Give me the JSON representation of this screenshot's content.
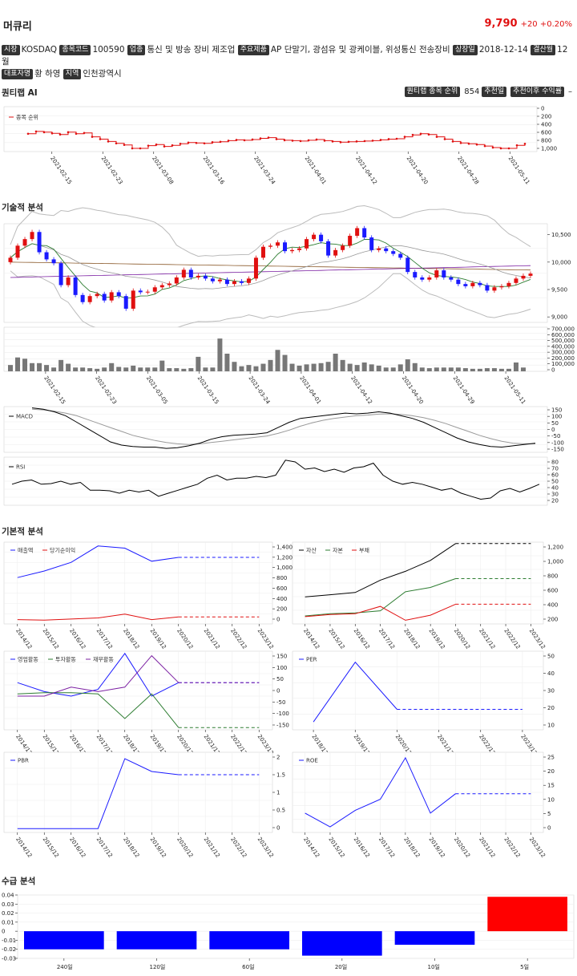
{
  "header": {
    "name": "머큐리",
    "price": "9,790",
    "change": "+20 +0.20%"
  },
  "info": {
    "market_label": "시장",
    "market": "KOSDAQ",
    "code_label": "종목코드",
    "code": "100590",
    "industry_label": "업종",
    "industry": "통신 및 방송 장비 제조업",
    "product_label": "주요제품",
    "product": "AP 단말기, 광섬유 및 광케이블, 위성통신 전송장비",
    "listing_label": "상장일",
    "listing": "2018-12-14",
    "fiscal_label": "결산월",
    "fiscal": "12월",
    "ceo_label": "대표자명",
    "ceo": "황 하영",
    "region_label": "지역",
    "region": "인천광역시"
  },
  "sections": {
    "ai": "퀀티랩 AI",
    "tech": "기술적 분석",
    "fund": "기본적 분석",
    "supply": "수급 분석"
  },
  "ai": {
    "rank_label": "퀀티랩 종목 순위",
    "rank": "854",
    "rec_label": "추천일",
    "ret_label": "추천이후 수익률",
    "ret": "–"
  },
  "charts": {
    "rank": {
      "legend": "종목 순위",
      "yticks": [
        "0",
        "200",
        "400",
        "600",
        "800",
        "1,000"
      ],
      "xticks": [
        "2021-02-15",
        "2021-02-23",
        "2021-03-08",
        "2021-03-16",
        "2021-03-24",
        "2021-04-01",
        "2021-04-12",
        "2021-04-20",
        "2021-04-28",
        "2021-05-11"
      ],
      "values": [
        620,
        560,
        580,
        610,
        640,
        580,
        620,
        600,
        700,
        760,
        820,
        870,
        910,
        1000,
        1000,
        930,
        900,
        950,
        920,
        880,
        850,
        860,
        870,
        840,
        830,
        800,
        780,
        790,
        770,
        740,
        720,
        760,
        790,
        800,
        810,
        790,
        770,
        800,
        820,
        840,
        830,
        820,
        810,
        800,
        780,
        760,
        750,
        700,
        650,
        620,
        640,
        700,
        760,
        820,
        860,
        880,
        900,
        940,
        980,
        1000,
        1000,
        920,
        880
      ]
    },
    "candle": {
      "yticks": [
        "10,500",
        "10,000",
        "9,500",
        "9,000"
      ],
      "xticks": [
        "2021-02-15",
        "2021-02-23",
        "2021-03-05",
        "2021-03-15",
        "2021-03-24",
        "2021-04-01",
        "2021-04-12",
        "2021-04-20",
        "2021-04-29",
        "2021-05-11"
      ]
    },
    "volume": {
      "yticks": [
        "700,000",
        "600,000",
        "500,000",
        "400,000",
        "300,000",
        "200,000",
        "100,000",
        "0"
      ]
    },
    "macd": {
      "legend": "MACD",
      "yticks": [
        "150",
        "100",
        "50",
        "0",
        "-50",
        "-100",
        "-150"
      ]
    },
    "rsi": {
      "legend": "RSI",
      "yticks": [
        "80",
        "70",
        "60",
        "50",
        "40",
        "30",
        "20"
      ]
    },
    "sales": {
      "legend": [
        "매출액",
        "당기순이익"
      ],
      "yticks": [
        "1,400",
        "1,200",
        "1,000",
        "800",
        "600",
        "400",
        "200",
        "0"
      ],
      "xticks": [
        "2014/12",
        "2015/12",
        "2016/12",
        "2017/12",
        "2018/12",
        "2019/12",
        "2020/12",
        "2021/12",
        "2022/12",
        "2023/12"
      ]
    },
    "assets": {
      "legend": [
        "자산",
        "자본",
        "부채"
      ],
      "yticks": [
        "1,200",
        "1,000",
        "800",
        "600",
        "400",
        "200"
      ],
      "xticks": [
        "2014/12",
        "2015/12",
        "2016/12",
        "2017/12",
        "2018/12",
        "2019/12",
        "2020/12",
        "2021/12",
        "2022/12",
        "2023/12"
      ]
    },
    "cashflow": {
      "legend": [
        "영업활동",
        "투자활동",
        "재무활동"
      ],
      "yticks": [
        "150",
        "100",
        "50",
        "0",
        "-50",
        "-100",
        "-150"
      ],
      "xticks": [
        "2014/12",
        "2015/12",
        "2016/12",
        "2017/12",
        "2018/12",
        "2019/12",
        "2020/12",
        "2021/12",
        "2022/12",
        "2023/12"
      ]
    },
    "per": {
      "legend": "PER",
      "yticks": [
        "50",
        "40",
        "30",
        "20",
        "10"
      ],
      "xticks": [
        "2018/12",
        "2019/12",
        "2020/12",
        "2021/12",
        "2022/12",
        "2023/12"
      ]
    },
    "pbr": {
      "legend": "PBR",
      "yticks": [
        "2",
        "1.5",
        "1",
        "0.5",
        "0"
      ],
      "xticks": [
        "2014/12",
        "2015/12",
        "2016/12",
        "2017/12",
        "2018/12",
        "2019/12",
        "2020/12",
        "2021/12",
        "2022/12",
        "2023/12"
      ]
    },
    "roe": {
      "legend": "ROE",
      "yticks": [
        "25",
        "20",
        "15",
        "10",
        "5",
        "0"
      ],
      "xticks": [
        "2014/12",
        "2015/12",
        "2016/12",
        "2017/12",
        "2018/12",
        "2019/12",
        "2020/12",
        "2021/12",
        "2022/12",
        "2023/12"
      ]
    }
  },
  "chart_data": {
    "type": "bar",
    "categories": [
      "240일",
      "120일",
      "60일",
      "20일",
      "10일",
      "5일"
    ],
    "values": [
      -0.02,
      -0.02,
      -0.02,
      -0.027,
      -0.015,
      0.038
    ],
    "ylim": [
      -0.03,
      0.04
    ],
    "yticks": [
      "0.04",
      "0.03",
      "0.02",
      "0.01",
      "0",
      "-0.01",
      "-0.02",
      "-0.03"
    ]
  }
}
